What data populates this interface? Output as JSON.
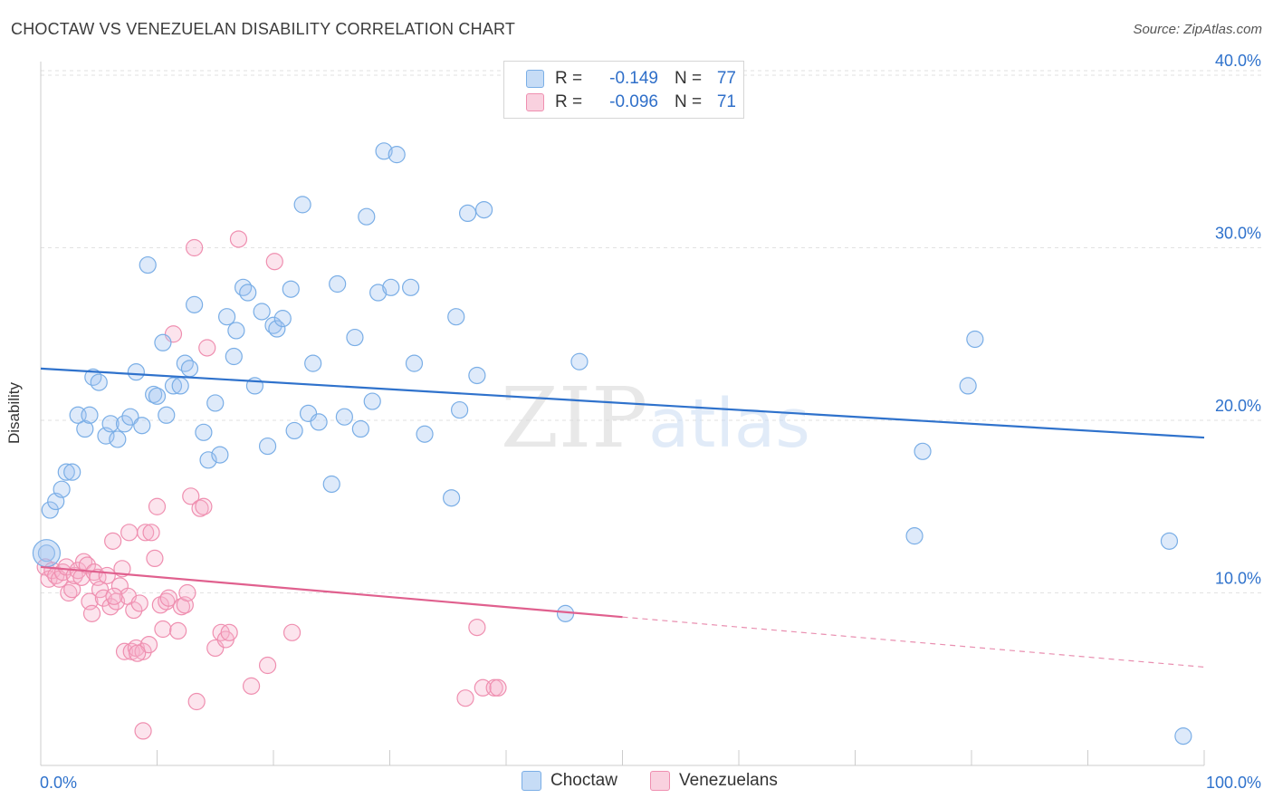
{
  "chart_data": {
    "type": "scatter",
    "title": "CHOCTAW VS VENEZUELAN DISABILITY CORRELATION CHART",
    "source": "Source: ZipAtlas.com",
    "xlabel": "",
    "ylabel": "Disability",
    "xlim": [
      0,
      100
    ],
    "ylim": [
      0,
      42
    ],
    "x_ticks": [
      "0.0%",
      "100.0%"
    ],
    "y_ticks": [
      {
        "value": 10,
        "label": "10.0%"
      },
      {
        "value": 20,
        "label": "20.0%"
      },
      {
        "value": 30,
        "label": "30.0%"
      },
      {
        "value": 40,
        "label": "40.0%"
      }
    ],
    "watermark": {
      "zip": "ZIP",
      "atlas": "atlas"
    },
    "legend_stats": [
      {
        "r_label": "R =",
        "r_value": "-0.149",
        "n_label": "N =",
        "n_value": "77"
      },
      {
        "r_label": "R =",
        "r_value": "-0.096",
        "n_label": "N =",
        "n_value": "71"
      }
    ],
    "series": [
      {
        "name": "Choctaw",
        "color": "#7aaee6",
        "fill": "rgba(160,196,240,0.35)",
        "line_color": "#2f72cc",
        "trend": {
          "x0": 0,
          "y0": 23.0,
          "x1": 100,
          "y1": 19.0,
          "dashed_from": null
        },
        "points": [
          [
            0.5,
            12.3
          ],
          [
            0.8,
            14.8
          ],
          [
            1.3,
            15.3
          ],
          [
            1.8,
            16.0
          ],
          [
            2.2,
            17.0
          ],
          [
            2.7,
            17.0
          ],
          [
            3.2,
            20.3
          ],
          [
            3.8,
            19.5
          ],
          [
            4.2,
            20.3
          ],
          [
            4.5,
            22.5
          ],
          [
            5.0,
            22.2
          ],
          [
            5.6,
            19.1
          ],
          [
            6.0,
            19.8
          ],
          [
            6.6,
            18.9
          ],
          [
            7.2,
            19.8
          ],
          [
            7.7,
            20.2
          ],
          [
            8.2,
            22.8
          ],
          [
            8.7,
            19.7
          ],
          [
            9.2,
            29.0
          ],
          [
            9.7,
            21.5
          ],
          [
            10.0,
            21.4
          ],
          [
            10.5,
            24.5
          ],
          [
            10.8,
            20.3
          ],
          [
            11.4,
            22.0
          ],
          [
            12.0,
            22.0
          ],
          [
            12.4,
            23.3
          ],
          [
            12.8,
            23.0
          ],
          [
            13.2,
            26.7
          ],
          [
            14.0,
            19.3
          ],
          [
            14.4,
            17.7
          ],
          [
            15.0,
            21.0
          ],
          [
            15.4,
            18.0
          ],
          [
            16.0,
            26.0
          ],
          [
            16.6,
            23.7
          ],
          [
            16.8,
            25.2
          ],
          [
            17.4,
            27.7
          ],
          [
            17.8,
            27.4
          ],
          [
            18.4,
            22.0
          ],
          [
            19.0,
            26.3
          ],
          [
            19.5,
            18.5
          ],
          [
            20.0,
            25.5
          ],
          [
            20.3,
            25.3
          ],
          [
            20.8,
            25.9
          ],
          [
            21.5,
            27.6
          ],
          [
            21.8,
            19.4
          ],
          [
            22.5,
            32.5
          ],
          [
            23.0,
            20.4
          ],
          [
            23.4,
            23.3
          ],
          [
            23.9,
            19.9
          ],
          [
            25.0,
            16.3
          ],
          [
            25.5,
            27.9
          ],
          [
            26.1,
            20.2
          ],
          [
            27.0,
            24.8
          ],
          [
            27.5,
            19.5
          ],
          [
            28.0,
            31.8
          ],
          [
            28.5,
            21.1
          ],
          [
            29.0,
            27.4
          ],
          [
            29.5,
            35.6
          ],
          [
            30.1,
            27.7
          ],
          [
            30.6,
            35.4
          ],
          [
            31.8,
            27.7
          ],
          [
            32.1,
            23.3
          ],
          [
            33.0,
            19.2
          ],
          [
            35.3,
            15.5
          ],
          [
            35.7,
            26.0
          ],
          [
            36.0,
            20.6
          ],
          [
            36.7,
            32.0
          ],
          [
            37.5,
            22.6
          ],
          [
            38.1,
            32.2
          ],
          [
            45.1,
            8.8
          ],
          [
            46.3,
            23.4
          ],
          [
            75.1,
            13.3
          ],
          [
            75.8,
            18.2
          ],
          [
            79.7,
            22.0
          ],
          [
            80.3,
            24.7
          ],
          [
            97.0,
            13.0
          ],
          [
            98.2,
            1.7
          ]
        ]
      },
      {
        "name": "Venezuelans",
        "color": "#ef8fb0",
        "fill": "rgba(245,178,202,0.35)",
        "line_color": "#e0608e",
        "trend": {
          "x0": 0,
          "y0": 11.5,
          "x1": 100,
          "y1": 5.7,
          "solid_to": 50
        },
        "points": [
          [
            0.4,
            11.5
          ],
          [
            0.7,
            10.8
          ],
          [
            1.0,
            11.3
          ],
          [
            1.3,
            11.0
          ],
          [
            1.6,
            10.8
          ],
          [
            1.9,
            11.2
          ],
          [
            2.2,
            11.5
          ],
          [
            2.4,
            10.0
          ],
          [
            2.7,
            10.2
          ],
          [
            2.9,
            11.0
          ],
          [
            3.2,
            11.3
          ],
          [
            3.5,
            10.9
          ],
          [
            3.7,
            11.8
          ],
          [
            4.0,
            11.6
          ],
          [
            4.2,
            9.5
          ],
          [
            4.4,
            8.8
          ],
          [
            4.6,
            11.2
          ],
          [
            4.9,
            10.9
          ],
          [
            5.1,
            10.2
          ],
          [
            5.4,
            9.7
          ],
          [
            5.7,
            11.0
          ],
          [
            6.0,
            9.2
          ],
          [
            6.2,
            13.0
          ],
          [
            6.5,
            9.5
          ],
          [
            6.8,
            10.4
          ],
          [
            7.0,
            11.4
          ],
          [
            7.2,
            6.6
          ],
          [
            7.5,
            9.8
          ],
          [
            7.8,
            6.6
          ],
          [
            8.0,
            9.0
          ],
          [
            8.2,
            6.8
          ],
          [
            8.5,
            9.4
          ],
          [
            8.8,
            6.6
          ],
          [
            9.0,
            13.5
          ],
          [
            9.3,
            7.0
          ],
          [
            9.5,
            13.5
          ],
          [
            9.8,
            12.0
          ],
          [
            10.0,
            15.0
          ],
          [
            10.3,
            9.3
          ],
          [
            10.5,
            7.9
          ],
          [
            10.8,
            9.5
          ],
          [
            11.0,
            9.7
          ],
          [
            11.4,
            25.0
          ],
          [
            11.8,
            7.8
          ],
          [
            12.1,
            9.2
          ],
          [
            12.4,
            9.3
          ],
          [
            12.6,
            10.0
          ],
          [
            12.9,
            15.6
          ],
          [
            13.2,
            30.0
          ],
          [
            13.4,
            3.7
          ],
          [
            13.7,
            14.9
          ],
          [
            14.0,
            15.0
          ],
          [
            14.3,
            24.2
          ],
          [
            15.0,
            6.8
          ],
          [
            15.5,
            7.7
          ],
          [
            15.9,
            7.3
          ],
          [
            16.2,
            7.7
          ],
          [
            17.0,
            30.5
          ],
          [
            18.1,
            4.6
          ],
          [
            19.5,
            5.8
          ],
          [
            20.1,
            29.2
          ],
          [
            21.6,
            7.7
          ],
          [
            8.8,
            2.0
          ],
          [
            36.5,
            3.9
          ],
          [
            37.5,
            8.0
          ],
          [
            38.0,
            4.5
          ],
          [
            39.0,
            4.5
          ],
          [
            39.3,
            4.5
          ],
          [
            8.3,
            6.5
          ],
          [
            7.6,
            13.5
          ],
          [
            6.3,
            9.8
          ]
        ]
      }
    ]
  }
}
